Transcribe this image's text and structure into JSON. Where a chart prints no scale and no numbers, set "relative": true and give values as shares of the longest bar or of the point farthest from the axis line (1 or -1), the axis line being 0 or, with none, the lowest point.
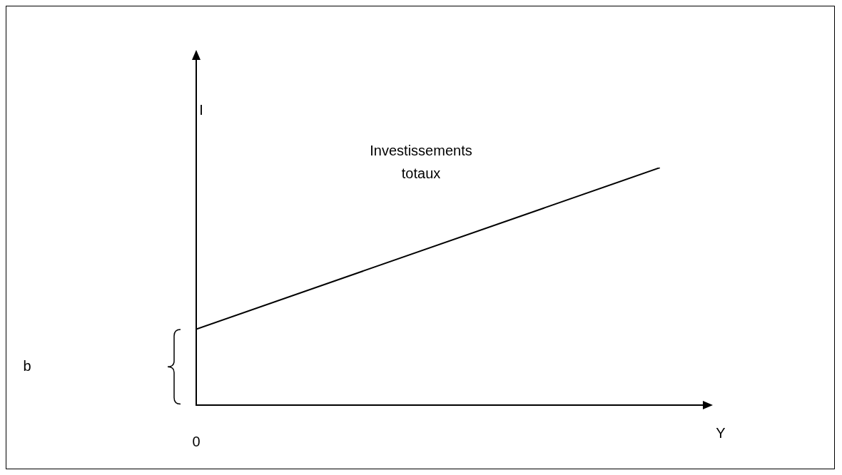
{
  "chart_data": {
    "type": "line",
    "relative": true,
    "xlabel": "Y",
    "ylabel": "I",
    "categories": [
      null,
      null
    ],
    "series": [
      {
        "name": "Investissements totaux",
        "color": "#000000",
        "values": [
          0.32,
          1
        ]
      }
    ],
    "annotations": [
      "0",
      "b"
    ],
    "legend": false,
    "grid": false,
    "marker": "none",
    "line_style": "solid"
  }
}
